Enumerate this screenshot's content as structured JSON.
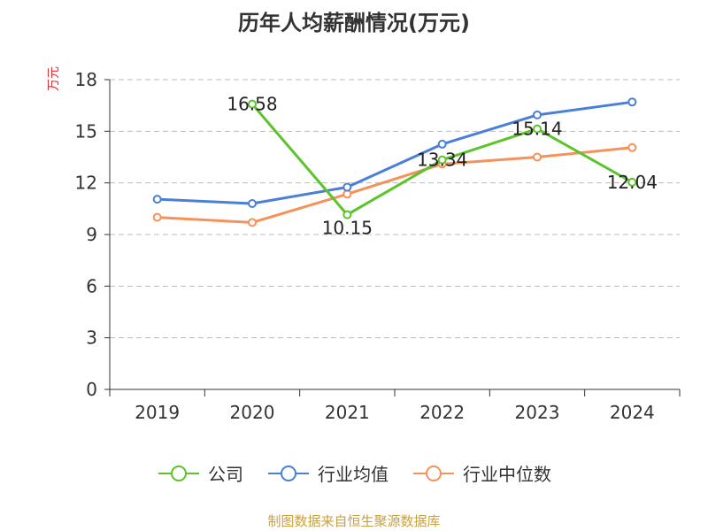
{
  "chart_data": {
    "type": "line",
    "title": "历年人均薪酬情况(万元)",
    "ylabel": "万元",
    "xlabel": "",
    "categories": [
      "2019",
      "2020",
      "2021",
      "2022",
      "2023",
      "2024"
    ],
    "ylim": [
      0,
      18
    ],
    "yticks": [
      0,
      3,
      6,
      9,
      12,
      15,
      18
    ],
    "grid": true,
    "legend_position": "bottom",
    "series": [
      {
        "name": "公司",
        "color": "#5cc42a",
        "values": [
          null,
          16.58,
          10.15,
          13.34,
          15.14,
          12.04
        ],
        "show_labels": true
      },
      {
        "name": "行业均值",
        "color": "#4a7fd9",
        "values": [
          11.05,
          10.8,
          11.75,
          14.25,
          15.95,
          16.7
        ],
        "show_labels": false
      },
      {
        "name": "行业中位数",
        "color": "#f4925a",
        "values": [
          10.0,
          9.7,
          11.35,
          13.1,
          13.5,
          14.05
        ],
        "show_labels": false
      }
    ],
    "data_labels": [
      "16.58",
      "10.15",
      "13.34",
      "15.14",
      "12.04"
    ]
  },
  "source": "制图数据来自恒生聚源数据库"
}
